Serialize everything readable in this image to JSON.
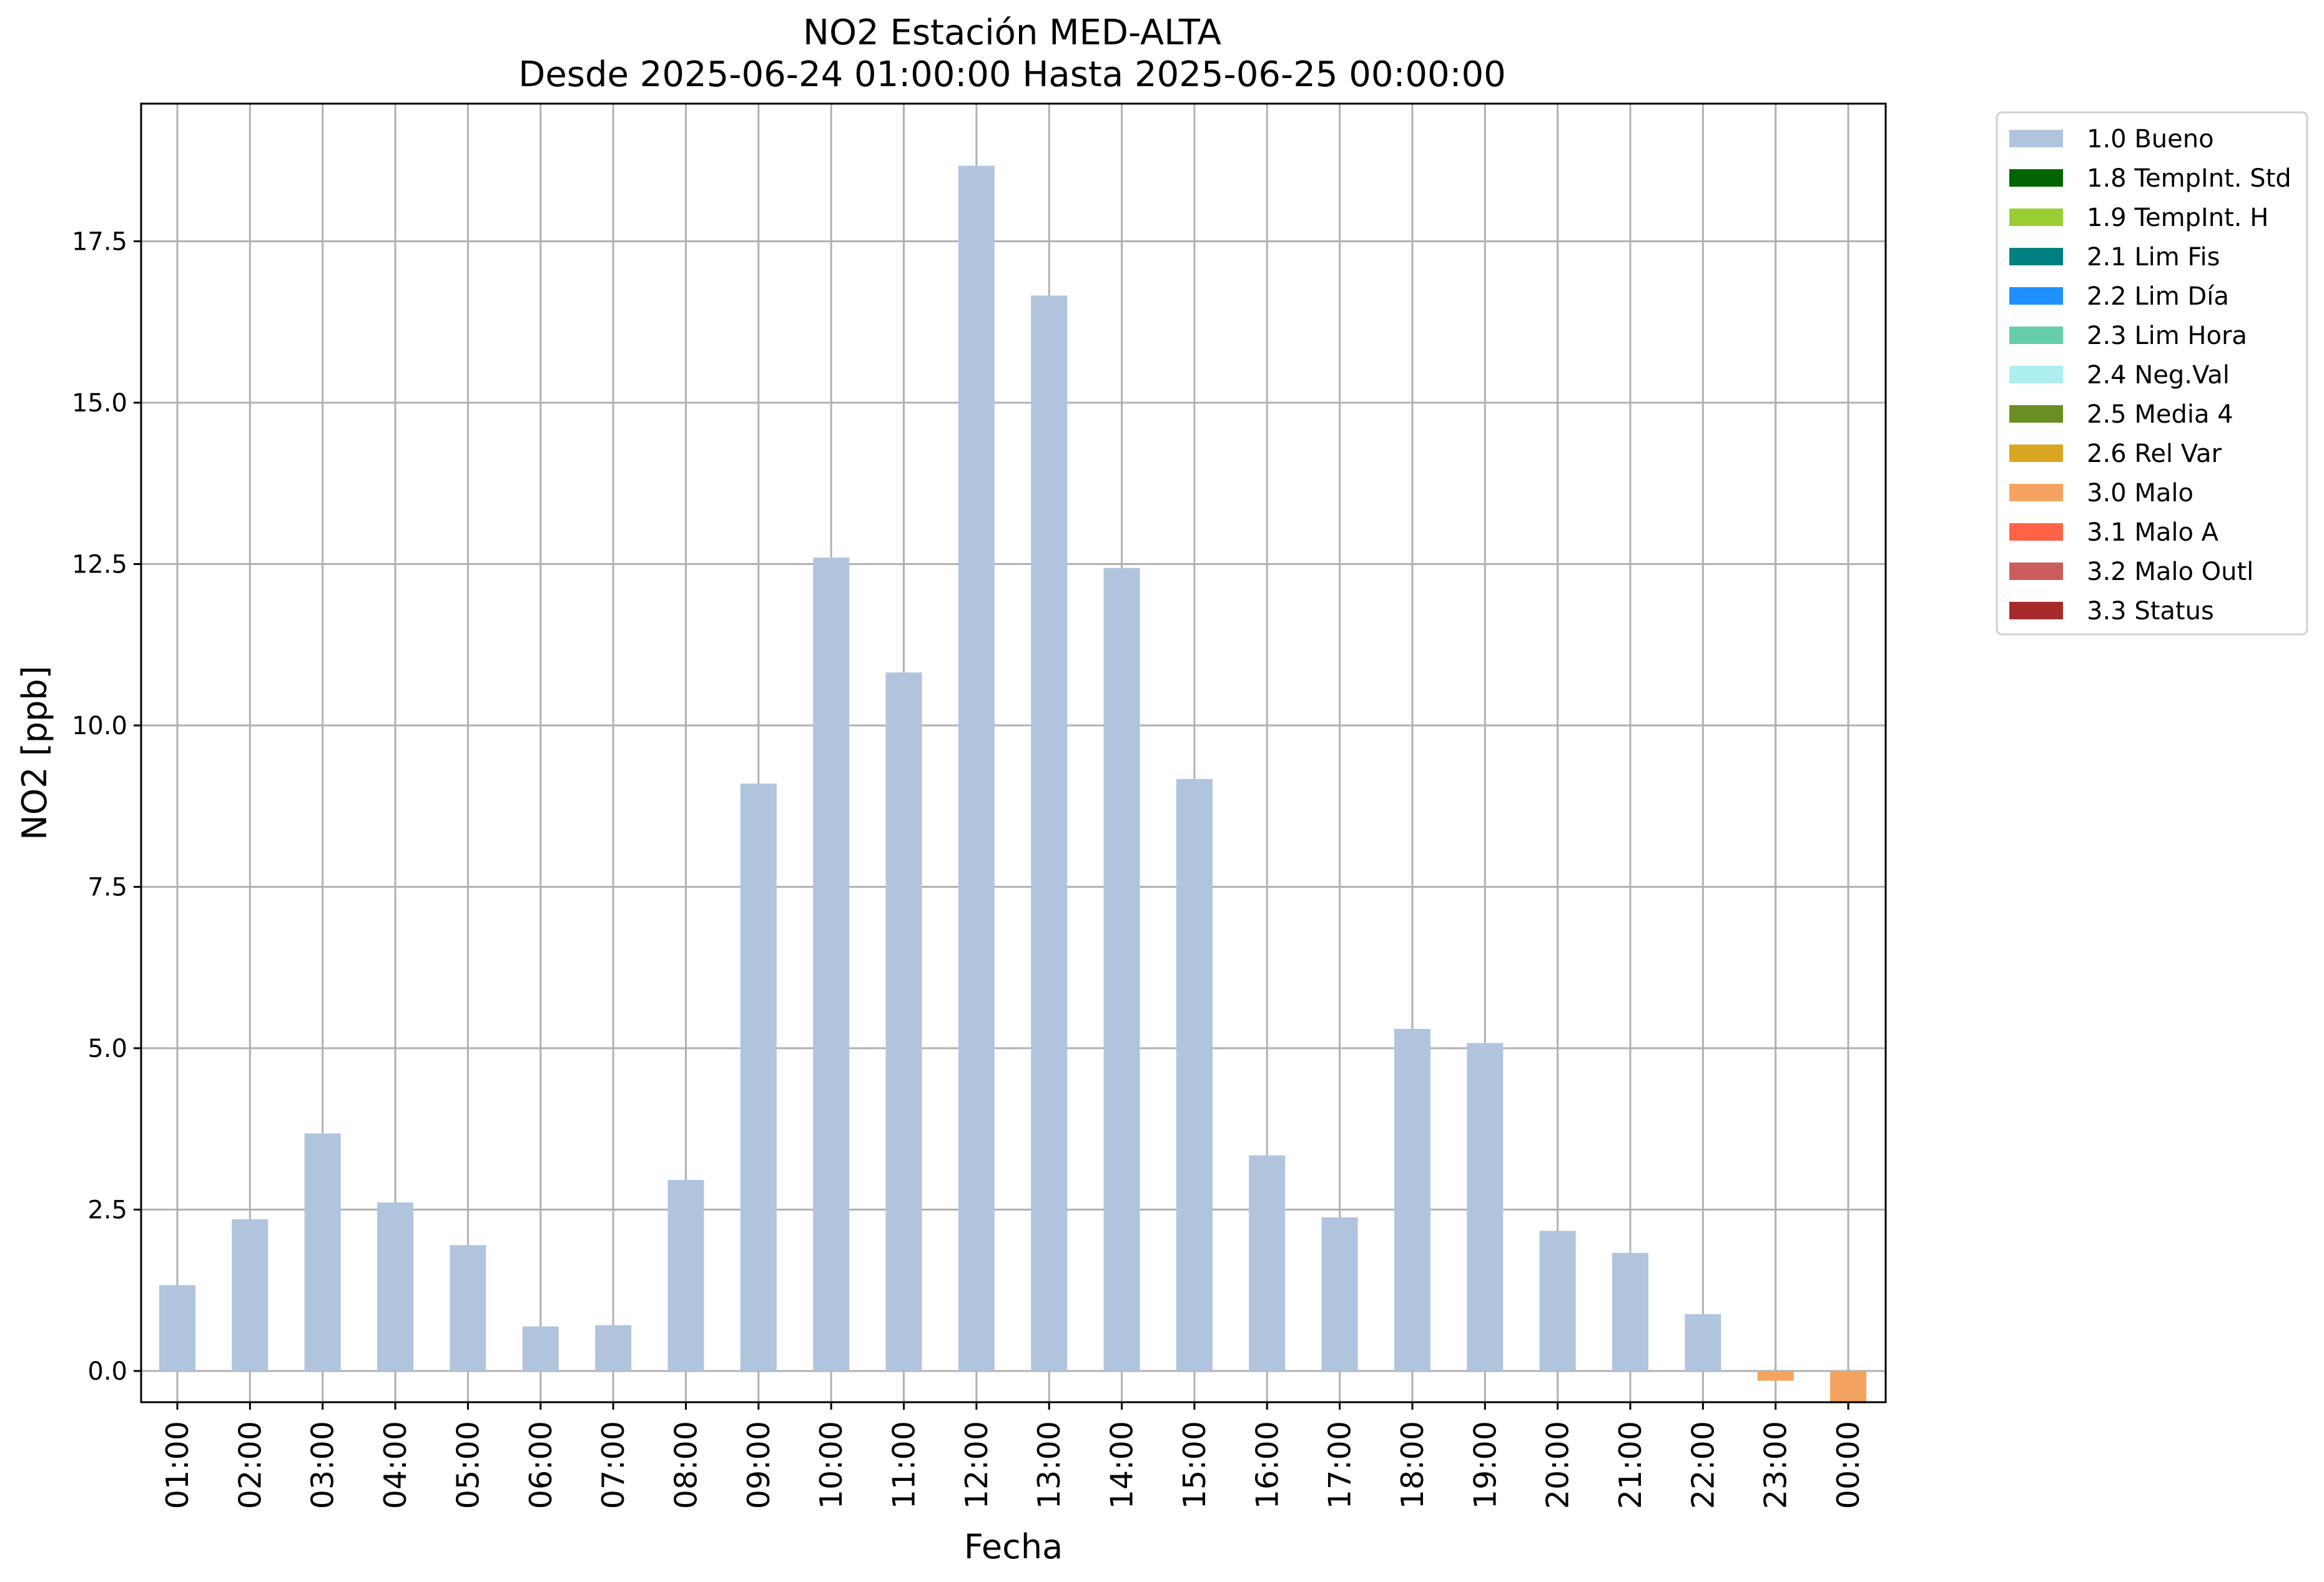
{
  "chart_data": {
    "type": "bar",
    "title": [
      "NO2 Estación MED-ALTA",
      "Desde 2025-06-24 01:00:00 Hasta 2025-06-25 00:00:00"
    ],
    "xlabel": "Fecha",
    "ylabel": "NO2 [ppb]",
    "ylim": [
      -0.5,
      19.6
    ],
    "yticks": [
      "0.0",
      "2.5",
      "5.0",
      "7.5",
      "10.0",
      "12.5",
      "15.0",
      "17.5"
    ],
    "grid": true,
    "legend_position": "outside right, top",
    "categories": [
      "01:00",
      "02:00",
      "03:00",
      "04:00",
      "05:00",
      "06:00",
      "07:00",
      "08:00",
      "09:00",
      "10:00",
      "11:00",
      "12:00",
      "13:00",
      "14:00",
      "15:00",
      "16:00",
      "17:00",
      "18:00",
      "19:00",
      "20:00",
      "21:00",
      "22:00",
      "23:00",
      "00:00"
    ],
    "values": [
      1.33,
      2.35,
      3.68,
      2.61,
      1.95,
      0.69,
      0.71,
      2.96,
      9.1,
      12.6,
      10.82,
      18.67,
      16.66,
      12.44,
      9.17,
      3.34,
      2.38,
      5.3,
      5.08,
      2.17,
      1.83,
      0.88,
      -0.15,
      -0.5
    ],
    "flags": [
      "1.0 Bueno",
      "1.0 Bueno",
      "1.0 Bueno",
      "1.0 Bueno",
      "1.0 Bueno",
      "1.0 Bueno",
      "1.0 Bueno",
      "1.0 Bueno",
      "1.0 Bueno",
      "1.0 Bueno",
      "1.0 Bueno",
      "1.0 Bueno",
      "1.0 Bueno",
      "1.0 Bueno",
      "1.0 Bueno",
      "1.0 Bueno",
      "1.0 Bueno",
      "1.0 Bueno",
      "1.0 Bueno",
      "1.0 Bueno",
      "1.0 Bueno",
      "1.0 Bueno",
      "3.0 Malo",
      "3.0 Malo"
    ],
    "legend": [
      {
        "label": "1.0 Bueno",
        "color": "#b0c4de"
      },
      {
        "label": "1.8 TempInt. Std",
        "color": "#006400"
      },
      {
        "label": "1.9 TempInt. H",
        "color": "#9acd32"
      },
      {
        "label": "2.1 Lim Fis",
        "color": "#008080"
      },
      {
        "label": "2.2 Lim Día",
        "color": "#1e90ff"
      },
      {
        "label": "2.3 Lim Hora",
        "color": "#66cdaa"
      },
      {
        "label": "2.4 Neg.Val",
        "color": "#afeeee"
      },
      {
        "label": "2.5 Media 4",
        "color": "#6b8e23"
      },
      {
        "label": "2.6 Rel Var",
        "color": "#daa520"
      },
      {
        "label": "3.0 Malo",
        "color": "#f4a460"
      },
      {
        "label": "3.1 Malo A",
        "color": "#ff6347"
      },
      {
        "label": "3.2 Malo Outl",
        "color": "#cd5c5c"
      },
      {
        "label": "3.3 Status",
        "color": "#a52a2a"
      }
    ]
  }
}
